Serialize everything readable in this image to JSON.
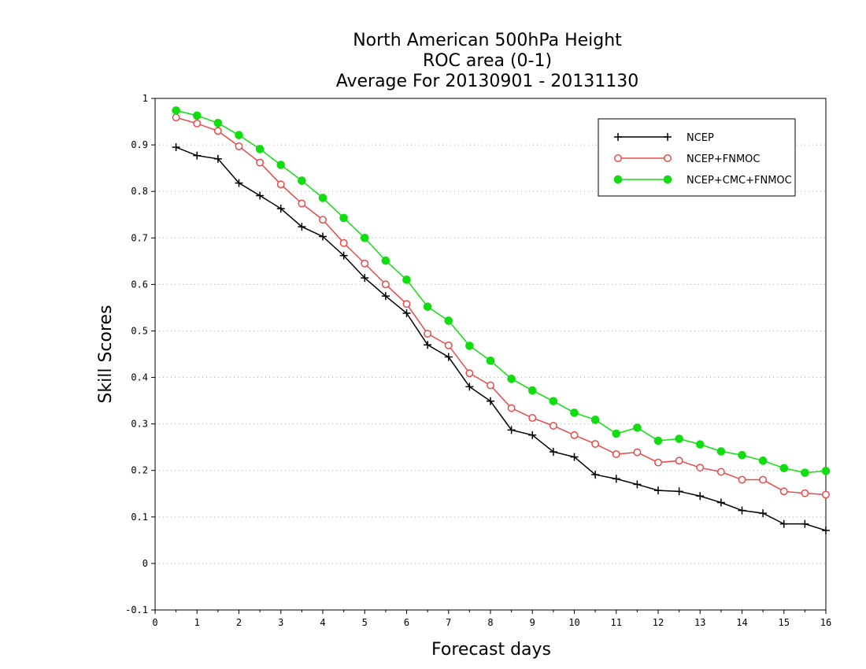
{
  "colors": {
    "ncep": "#000000",
    "ncep_fnmoc": "#e84a4a",
    "ncep_cmc_fnmoc": "#11dd11",
    "grid": "#aaaaaa"
  },
  "chart_data": {
    "type": "line",
    "title": [
      "North American 500hPa Height",
      "ROC area (0-1)",
      "Average For 20130901 - 20131130"
    ],
    "xlabel": "Forecast days",
    "ylabel": "Skill Scores",
    "xlim": [
      0,
      16
    ],
    "ylim": [
      -0.1,
      1
    ],
    "xticks": [
      "0",
      "1",
      "2",
      "3",
      "4",
      "5",
      "6",
      "7",
      "8",
      "9",
      "10",
      "11",
      "12",
      "13",
      "14",
      "15",
      "16"
    ],
    "yticks": [
      "-0.1",
      "0",
      "0.1",
      "0.2",
      "0.3",
      "0.4",
      "0.5",
      "0.6",
      "0.7",
      "0.8",
      "0.9",
      "1"
    ],
    "grid": true,
    "legend_position": "top-right",
    "x": [
      0.5,
      1,
      1.5,
      2,
      2.5,
      3,
      3.5,
      4,
      4.5,
      5,
      5.5,
      6,
      6.5,
      7,
      7.5,
      8,
      8.5,
      9,
      9.5,
      10,
      10.5,
      11,
      11.5,
      12,
      12.5,
      13,
      13.5,
      14,
      14.5,
      15,
      15.5,
      16
    ],
    "series": [
      {
        "name": "NCEP",
        "marker": "plus",
        "values": [
          0.895,
          0.877,
          0.87,
          0.818,
          0.791,
          0.763,
          0.724,
          0.703,
          0.662,
          0.614,
          0.575,
          0.538,
          0.47,
          0.444,
          0.38,
          0.349,
          0.287,
          0.276,
          0.24,
          0.229,
          0.191,
          0.182,
          0.17,
          0.157,
          0.155,
          0.145,
          0.131,
          0.114,
          0.108,
          0.085,
          0.085,
          0.071
        ]
      },
      {
        "name": "NCEP+FNMOC",
        "marker": "open-circle",
        "values": [
          0.959,
          0.946,
          0.93,
          0.897,
          0.862,
          0.815,
          0.774,
          0.739,
          0.689,
          0.645,
          0.6,
          0.558,
          0.494,
          0.469,
          0.409,
          0.383,
          0.334,
          0.313,
          0.296,
          0.276,
          0.257,
          0.235,
          0.239,
          0.217,
          0.221,
          0.206,
          0.197,
          0.18,
          0.18,
          0.155,
          0.151,
          0.148
        ]
      },
      {
        "name": "NCEP+CMC+FNMOC",
        "marker": "filled-circle",
        "values": [
          0.974,
          0.963,
          0.947,
          0.921,
          0.891,
          0.857,
          0.823,
          0.786,
          0.743,
          0.7,
          0.651,
          0.61,
          0.552,
          0.522,
          0.468,
          0.436,
          0.397,
          0.372,
          0.349,
          0.324,
          0.309,
          0.279,
          0.292,
          0.264,
          0.268,
          0.256,
          0.241,
          0.233,
          0.221,
          0.205,
          0.195,
          0.199
        ]
      }
    ]
  }
}
